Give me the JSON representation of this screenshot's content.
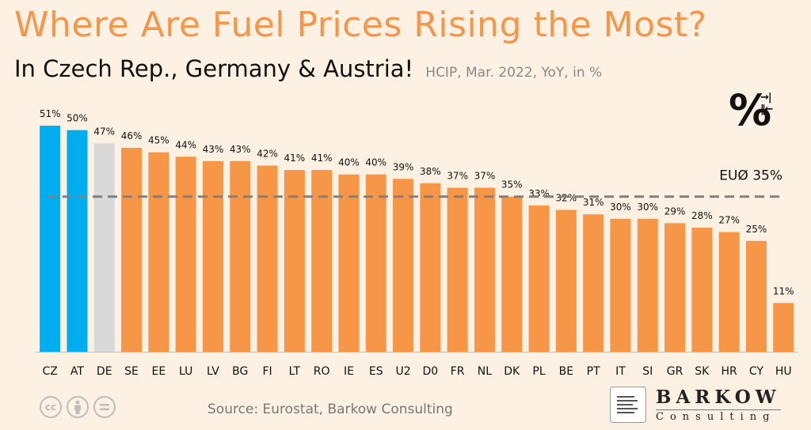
{
  "header": {
    "title": "Where Are Fuel Prices Rising the Most?",
    "subtitle": "In Czech Rep., Germany & Austria!",
    "note": "HCIP, Mar. 2022, YoY, in %"
  },
  "footer": {
    "source": "Source: Eurostat, Barkow Consulting",
    "brand_name": "BARKOW",
    "brand_sub": "Consulting",
    "cc_icons": [
      "cc-icon",
      "by-icon",
      "nd-icon"
    ]
  },
  "logo": {
    "symbol": "%",
    "arrows": "→|‖←"
  },
  "colors": {
    "highlight": "#00adef",
    "germany": "#d9d9d9",
    "default": "#f79646",
    "title": "#f5964a",
    "average_line": "#808080"
  },
  "chart_data": {
    "type": "bar",
    "categories": [
      "CZ",
      "AT",
      "DE",
      "SE",
      "EE",
      "LU",
      "LV",
      "BG",
      "FI",
      "LT",
      "RO",
      "IE",
      "ES",
      "U2",
      "D0",
      "FR",
      "NL",
      "DK",
      "PL",
      "BE",
      "PT",
      "IT",
      "SI",
      "GR",
      "SK",
      "HR",
      "CY",
      "HU"
    ],
    "values": [
      51,
      50,
      47,
      46,
      45,
      44,
      43,
      43,
      42,
      41,
      41,
      40,
      40,
      39,
      38,
      37,
      37,
      35,
      33,
      32,
      31,
      30,
      30,
      29,
      28,
      27,
      25,
      11
    ],
    "data_labels": [
      "51%",
      "50%",
      "47%",
      "46%",
      "45%",
      "44%",
      "43%",
      "43%",
      "42%",
      "41%",
      "41%",
      "40%",
      "40%",
      "39%",
      "38%",
      "37%",
      "37%",
      "35%",
      "33%",
      "32%",
      "31%",
      "30%",
      "30%",
      "29%",
      "28%",
      "27%",
      "25%",
      "11%"
    ],
    "bar_colors": [
      "highlight",
      "highlight",
      "germany",
      "default",
      "default",
      "default",
      "default",
      "default",
      "default",
      "default",
      "default",
      "default",
      "default",
      "default",
      "default",
      "default",
      "default",
      "default",
      "default",
      "default",
      "default",
      "default",
      "default",
      "default",
      "default",
      "default",
      "default",
      "default"
    ],
    "average": {
      "value": 35,
      "label": "EUØ 35%"
    },
    "ylim": [
      0,
      51
    ],
    "grid": false
  }
}
